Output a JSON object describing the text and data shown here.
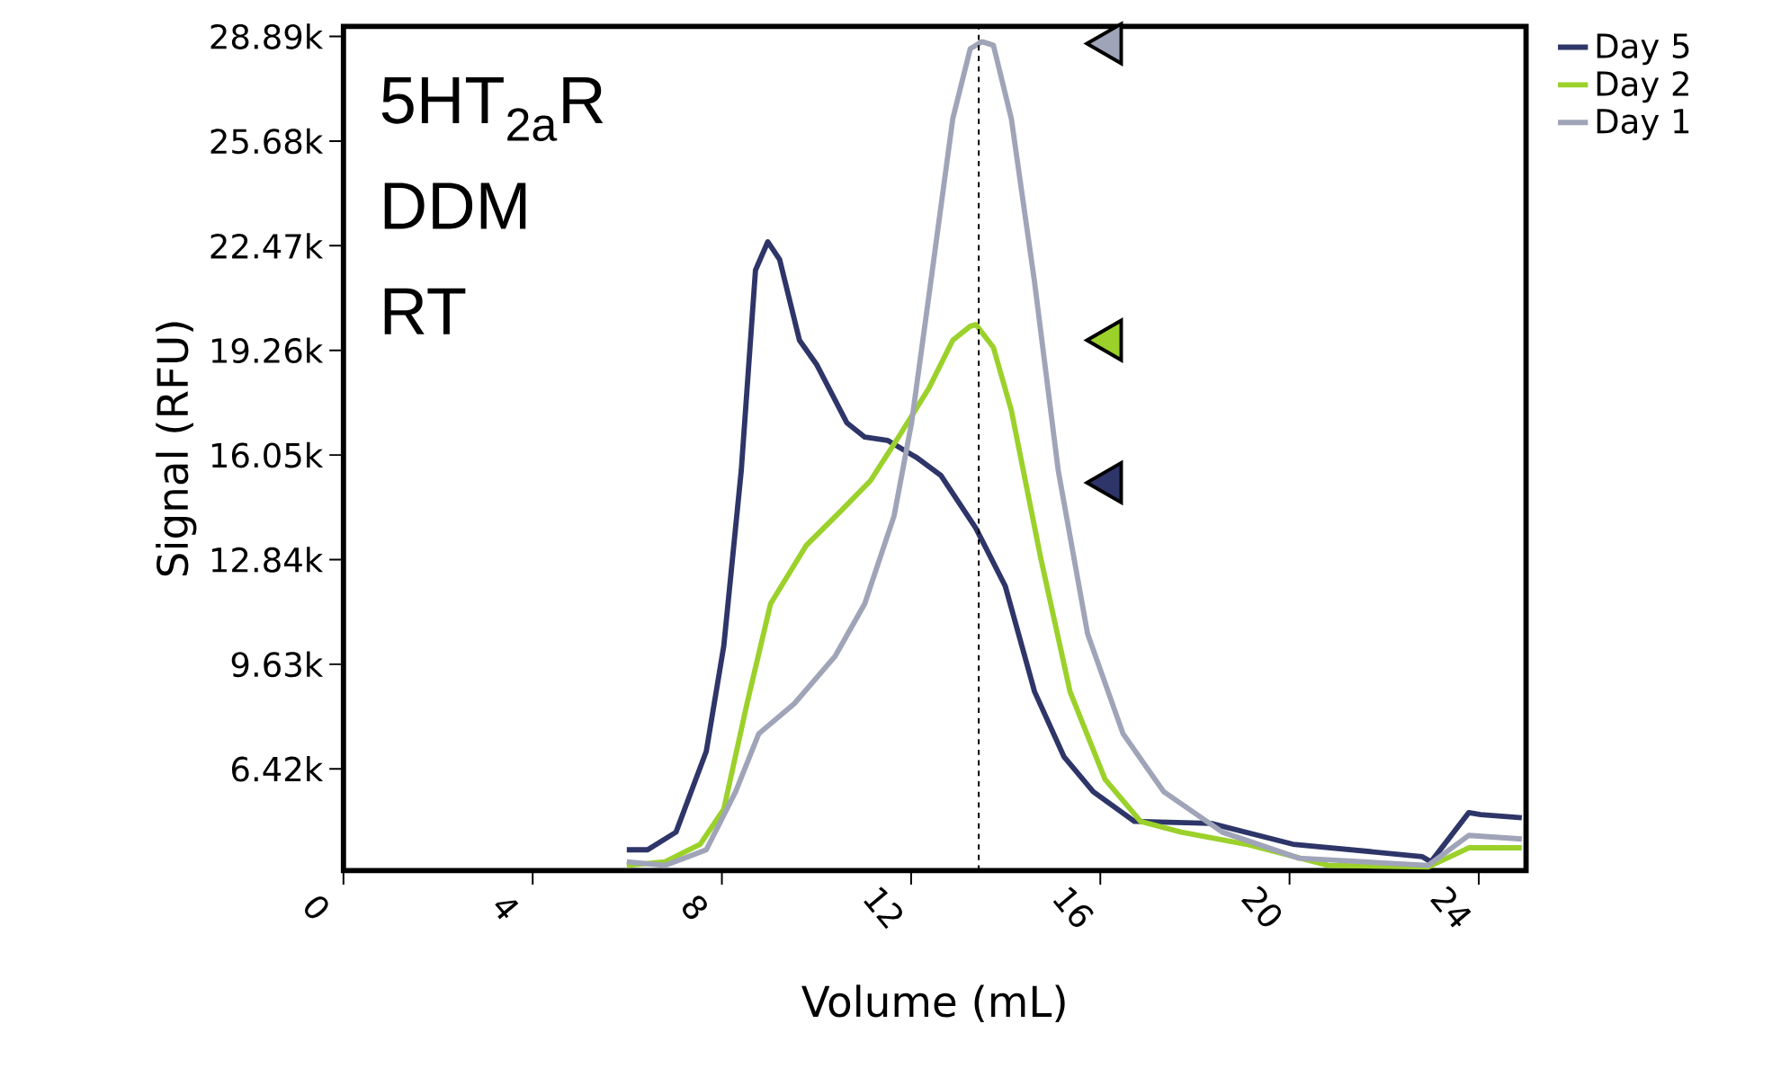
{
  "chart_data": {
    "type": "line",
    "xlabel": "Volume (mL)",
    "ylabel": "Signal (RFU)",
    "annotations": [
      "5HT$_{2a}$R",
      "DDM",
      "RT"
    ],
    "xlim": [
      0,
      25
    ],
    "ylim": [
      3300,
      29200
    ],
    "xticks": [
      0,
      4,
      8,
      12,
      16,
      20,
      24
    ],
    "yticks": [
      {
        "value": 6420,
        "label": "6.42k"
      },
      {
        "value": 9630,
        "label": "9.63k"
      },
      {
        "value": 12840,
        "label": "12.84k"
      },
      {
        "value": 16050,
        "label": "16.05k"
      },
      {
        "value": 19260,
        "label": "19.26k"
      },
      {
        "value": 22470,
        "label": "22.47k"
      },
      {
        "value": 25680,
        "label": "25.68k"
      },
      {
        "value": 28890,
        "label": "28.89k"
      }
    ],
    "grid": false,
    "legend": "top right",
    "marker": "none",
    "line_style": "solid",
    "ref_lines": [
      {
        "axis": "x",
        "value": 13.43,
        "color": "#000000",
        "line_style": "dashed"
      }
    ],
    "series": [
      {
        "name": "Day 5",
        "color": "#2e3568",
        "x": [
          5.99,
          6.43,
          7.03,
          7.67,
          8.04,
          8.41,
          8.71,
          8.97,
          9.22,
          9.64,
          10.01,
          10.64,
          11.02,
          11.5,
          12.13,
          12.63,
          13.37,
          13.99,
          14.61,
          15.23,
          15.85,
          16.72,
          18.34,
          20.07,
          22.8,
          22.99,
          23.79,
          24.04,
          24.91
        ],
        "values": [
          3940,
          3940,
          4480,
          6960,
          10190,
          15580,
          21720,
          22590,
          22050,
          19570,
          18810,
          17040,
          16600,
          16500,
          15960,
          15420,
          13800,
          12030,
          8790,
          6800,
          5720,
          4810,
          4750,
          4110,
          3730,
          3570,
          5080,
          5020,
          4920
        ]
      },
      {
        "name": "Day 2",
        "color": "#9bd12a",
        "x": [
          5.99,
          6.8,
          7.54,
          8.04,
          8.53,
          9.03,
          9.78,
          10.52,
          11.14,
          11.76,
          12.38,
          12.88,
          13.25,
          13.37,
          13.74,
          14.12,
          14.74,
          15.36,
          16.1,
          16.85,
          17.71,
          19.08,
          20.82,
          22.93,
          23.79,
          24.91
        ],
        "values": [
          3460,
          3570,
          4110,
          5180,
          8420,
          11490,
          13270,
          14340,
          15260,
          16660,
          18110,
          19570,
          20000,
          20050,
          19350,
          17410,
          12890,
          8790,
          6100,
          4810,
          4480,
          4110,
          3460,
          3410,
          4000,
          4000
        ]
      },
      {
        "name": "Day 1",
        "color": "#a0a4b8",
        "x": [
          5.99,
          6.8,
          7.67,
          8.29,
          8.78,
          9.53,
          10.39,
          11.02,
          11.64,
          12.01,
          12.38,
          12.88,
          13.25,
          13.5,
          13.74,
          14.12,
          14.61,
          15.11,
          15.73,
          16.48,
          17.34,
          18.58,
          20.2,
          22.93,
          23.79,
          24.91
        ],
        "values": [
          3570,
          3460,
          3940,
          5720,
          7500,
          8420,
          9870,
          11490,
          14180,
          17040,
          20970,
          26360,
          28510,
          28730,
          28620,
          26360,
          21350,
          15580,
          10570,
          7500,
          5720,
          4480,
          3680,
          3460,
          4380,
          4270
        ]
      },
      {
        "type": "scatter",
        "marker": "triangle",
        "color": "#a0a4b8",
        "x": [
          16.2
        ],
        "values": [
          28670
        ]
      },
      {
        "type": "scatter",
        "marker": "triangle",
        "color": "#9bd12a",
        "x": [
          16.2
        ],
        "values": [
          19570
        ]
      },
      {
        "type": "scatter",
        "marker": "triangle",
        "color": "#2e3568",
        "x": [
          16.2
        ],
        "values": [
          15200
        ]
      }
    ]
  }
}
